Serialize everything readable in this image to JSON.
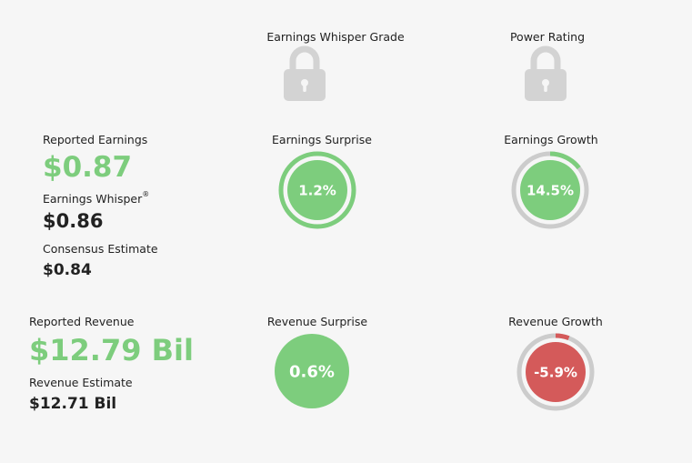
{
  "grades": {
    "whisper_grade_label": "Earnings Whisper Grade",
    "power_rating_label": "Power Rating",
    "lock_icon": "lock-icon"
  },
  "earnings": {
    "reported_label": "Reported Earnings",
    "reported_value": "$0.87",
    "whisper_label": "Earnings Whisper",
    "whisper_mark": "®",
    "whisper_value": "$0.86",
    "consensus_label": "Consensus Estimate",
    "consensus_value": "$0.84",
    "surprise": {
      "label": "Earnings Surprise",
      "value_text": "1.2%",
      "value": 1.2,
      "ring_fraction": 1.0
    },
    "growth": {
      "label": "Earnings Growth",
      "value_text": "14.5%",
      "value": 14.5,
      "ring_fraction": 0.145
    }
  },
  "revenue": {
    "reported_label": "Reported Revenue",
    "reported_value": "$12.79 Bil",
    "estimate_label": "Revenue Estimate",
    "estimate_value": "$12.71 Bil",
    "surprise": {
      "label": "Revenue Surprise",
      "value_text": "0.6%",
      "value": 0.6
    },
    "growth": {
      "label": "Revenue Growth",
      "value_text": "-5.9%",
      "value": -5.9,
      "ring_fraction": 0.059
    }
  },
  "colors": {
    "positive": "#7dcd7d",
    "negative": "#d45a5a",
    "ring_track": "#cccccc",
    "lock": "#d3d3d3",
    "background": "#f6f6f6"
  }
}
